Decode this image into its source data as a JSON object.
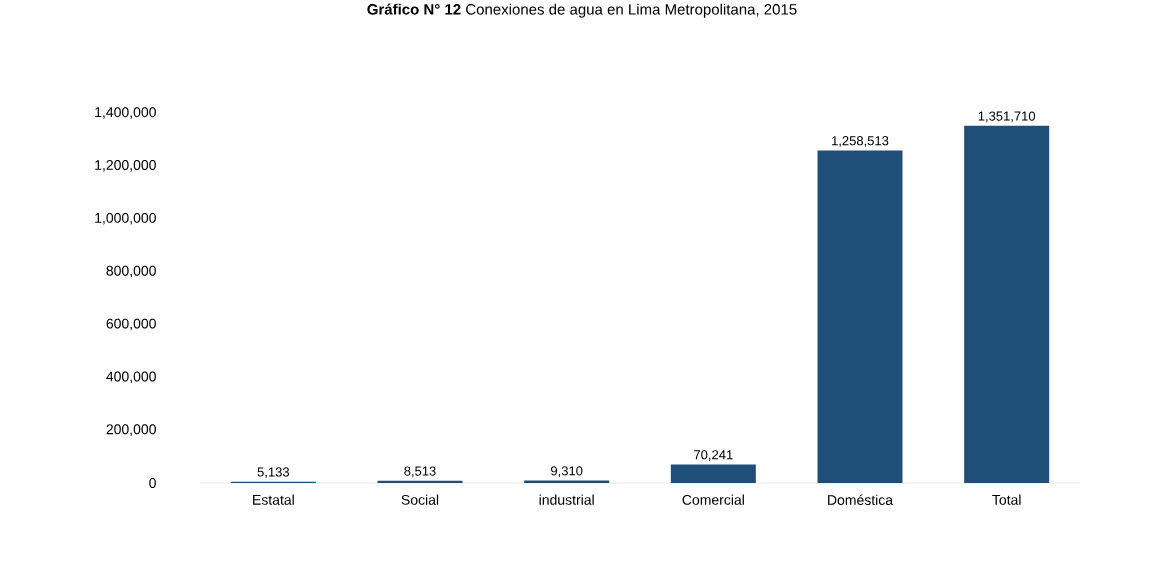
{
  "chart_data": {
    "type": "bar",
    "title": "**Gráfico N° 12** Conexiones de agua en Lima Metropolitana, 2015",
    "categories": [
      "Estatal",
      "Social",
      "industrial",
      "Comercial",
      "Doméstica",
      "Total"
    ],
    "values": [
      5133,
      8513,
      9310,
      70241,
      1258513,
      1351710
    ],
    "value_labels": [
      "5,133",
      "8,513",
      "9,310",
      "70,241",
      "1,258,513",
      "1,351,710"
    ],
    "color": "#1f4e79",
    "ylim": [
      0,
      1400000
    ],
    "yticks": [
      {
        "value": 0,
        "label": "0"
      },
      {
        "value": 200000,
        "label": "200,000"
      },
      {
        "value": 400000,
        "label": "400,000"
      },
      {
        "value": 600000,
        "label": "600,000"
      },
      {
        "value": 800000,
        "label": "800,000"
      },
      {
        "value": 1000000,
        "label": "1,000,000"
      },
      {
        "value": 1200000,
        "label": "1,200,000"
      },
      {
        "value": 1400000,
        "label": "1,400,000"
      }
    ]
  }
}
